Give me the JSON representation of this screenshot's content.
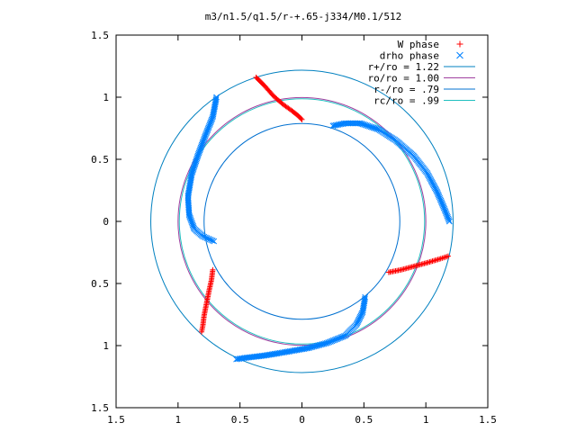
{
  "chart_data": {
    "type": "scatter",
    "title": "m3/n1.5/q1.5/r-+.65-j334/M0.1/512",
    "xlabel": "",
    "ylabel": "",
    "xlim": [
      -1.5,
      1.5
    ],
    "ylim": [
      -1.5,
      1.5
    ],
    "x_tick_labels": [
      "1.5",
      "1",
      "0.5",
      "0",
      "0.5",
      "1",
      "1.5"
    ],
    "y_tick_labels": [
      "1.5",
      "1",
      "0.5",
      "0",
      "0.5",
      "1",
      "1.5"
    ],
    "grid": false,
    "legend_position": "top-right",
    "series": [
      {
        "name": "W phase",
        "kind": "points",
        "marker": "+",
        "color": "#ff0000",
        "arms": [
          [
            [
              -0.37,
              1.16
            ],
            [
              -0.3,
              1.09
            ],
            [
              -0.23,
              1.01
            ],
            [
              -0.15,
              0.94
            ],
            [
              -0.08,
              0.89
            ],
            [
              -0.03,
              0.85
            ],
            [
              0.0,
              0.82
            ]
          ],
          [
            [
              0.7,
              -0.41
            ],
            [
              0.8,
              -0.39
            ],
            [
              0.91,
              -0.36
            ],
            [
              1.02,
              -0.33
            ],
            [
              1.12,
              -0.3
            ],
            [
              1.18,
              -0.28
            ]
          ],
          [
            [
              -0.72,
              -0.39
            ],
            [
              -0.73,
              -0.47
            ],
            [
              -0.75,
              -0.56
            ],
            [
              -0.77,
              -0.66
            ],
            [
              -0.79,
              -0.76
            ],
            [
              -0.8,
              -0.84
            ],
            [
              -0.81,
              -0.89
            ]
          ]
        ]
      },
      {
        "name": "drho phase",
        "kind": "points",
        "marker": "x",
        "color": "#0080ff",
        "arms": [
          [
            [
              0.25,
              0.77
            ],
            [
              0.35,
              0.79
            ],
            [
              0.47,
              0.79
            ],
            [
              0.62,
              0.74
            ],
            [
              0.76,
              0.65
            ],
            [
              0.9,
              0.53
            ],
            [
              1.01,
              0.39
            ],
            [
              1.09,
              0.24
            ],
            [
              1.15,
              0.1
            ],
            [
              1.19,
              0.0
            ]
          ],
          [
            [
              -0.71,
              -0.16
            ],
            [
              -0.8,
              -0.12
            ],
            [
              -0.87,
              -0.06
            ],
            [
              -0.91,
              0.05
            ],
            [
              -0.92,
              0.2
            ],
            [
              -0.89,
              0.38
            ],
            [
              -0.84,
              0.53
            ],
            [
              -0.78,
              0.69
            ],
            [
              -0.72,
              0.84
            ],
            [
              -0.69,
              1.0
            ]
          ],
          [
            [
              0.51,
              -0.61
            ],
            [
              0.49,
              -0.73
            ],
            [
              0.44,
              -0.83
            ],
            [
              0.35,
              -0.92
            ],
            [
              0.2,
              -0.98
            ],
            [
              0.05,
              -1.02
            ],
            [
              -0.12,
              -1.05
            ],
            [
              -0.3,
              -1.08
            ],
            [
              -0.47,
              -1.1
            ],
            [
              -0.53,
              -1.11
            ]
          ]
        ]
      },
      {
        "name": "r+/ro = 1.22",
        "kind": "circle",
        "radius": 1.22,
        "color": "#0080c0"
      },
      {
        "name": "ro/ro = 1.00",
        "kind": "circle",
        "radius": 1.0,
        "color": "#a040a0"
      },
      {
        "name": "r-/ro = .79",
        "kind": "circle",
        "radius": 0.79,
        "color": "#0070d0"
      },
      {
        "name": "rc/ro = .99",
        "kind": "circle",
        "radius": 0.99,
        "color": "#20c0c0"
      }
    ]
  }
}
